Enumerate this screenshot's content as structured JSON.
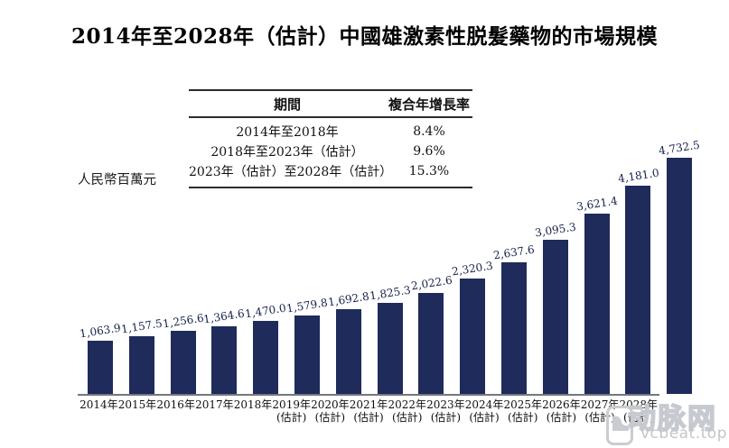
{
  "title": "2014年至2028年（估計）中國雄激素性脱髮藥物的市場規模",
  "y_axis_label": "人民幣百萬元",
  "cagr_table": {
    "headers": [
      "期間",
      "複合年增長率"
    ],
    "rows": [
      {
        "period": "2014年至2018年",
        "cagr": "8.4%"
      },
      {
        "period": "2018年至2023年（估計）",
        "cagr": "9.6%"
      },
      {
        "period": "2023年（估計）至2028年（估計）",
        "cagr": "15.3%"
      }
    ]
  },
  "chart_data": {
    "type": "bar",
    "title": "2014年至2028年（估計）中國雄激素性脱髮藥物的市場規模",
    "xlabel": "",
    "ylabel": "人民幣百萬元",
    "ylim": [
      0,
      5000
    ],
    "grid": false,
    "legend": "none",
    "bar_color": "#1f2b5b",
    "x_ticks": [
      {
        "year": "2014年",
        "note": ""
      },
      {
        "year": "2015年",
        "note": ""
      },
      {
        "year": "2016年",
        "note": ""
      },
      {
        "year": "2017年",
        "note": ""
      },
      {
        "year": "2018年",
        "note": ""
      },
      {
        "year": "2019年",
        "note": "(估計)"
      },
      {
        "year": "2020年",
        "note": "(估計)"
      },
      {
        "year": "2021年",
        "note": "(估計)"
      },
      {
        "year": "2022年",
        "note": "(估計)"
      },
      {
        "year": "2023年",
        "note": "(估計)"
      },
      {
        "year": "2024年",
        "note": "(估計)"
      },
      {
        "year": "2025年",
        "note": "(估計)"
      },
      {
        "year": "2026年",
        "note": "(估計)"
      },
      {
        "year": "2027年",
        "note": "(估計)"
      },
      {
        "year": "2028年",
        "note": "(估計)"
      }
    ],
    "values": [
      1063.9,
      1157.5,
      1256.6,
      1364.6,
      1470.0,
      1579.8,
      1692.8,
      1825.3,
      2022.6,
      2320.3,
      2637.6,
      3095.3,
      3621.4,
      4181.0,
      4732.5
    ],
    "value_labels": [
      "1,063.9",
      "1,157.5",
      "1,256.6",
      "1,364.6",
      "1,470.0",
      "1,579.8",
      "1,692.8",
      "1,825.3",
      "2,022.6",
      "2,320.3",
      "2,637.6",
      "3,095.3",
      "3,621.4",
      "4,181.0",
      "4,732.5"
    ]
  },
  "watermark": {
    "logo_text": "动脉网",
    "url_text": "vcbeat.top"
  }
}
